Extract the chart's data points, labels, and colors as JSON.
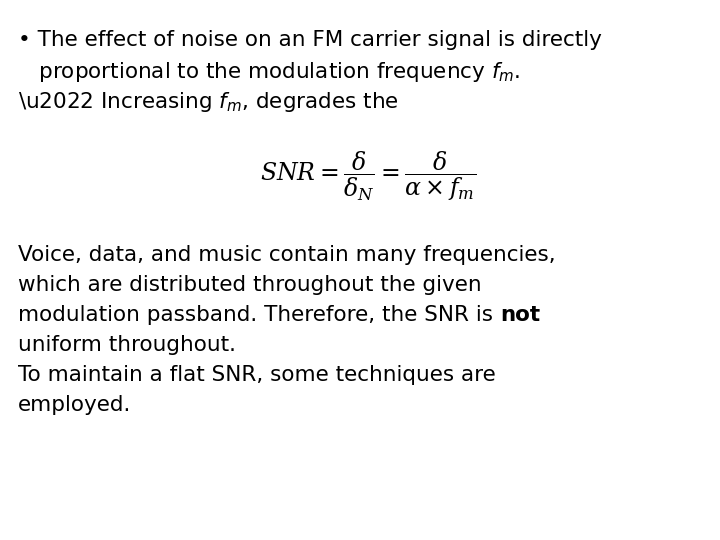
{
  "background_color": "#ffffff",
  "text_color": "#000000",
  "font_size": 15.5,
  "formula_font_size": 17,
  "bullet1_l1": "• The effect of noise on an FM carrier signal is directly",
  "bullet1_l2": "   proportional to the modulation frequency $f_m$.",
  "bullet2": "• Increasing $f_m$, degrades the",
  "formula": "$SNR = \\dfrac{\\delta}{\\delta_N} = \\dfrac{\\delta}{\\alpha \\times f_m}$",
  "para1": "Voice, data, and music contain many frequencies,",
  "para2": "which are distributed throughout the given",
  "para3_pre": "modulation passband. Therefore, the SNR is ",
  "para3_bold": "not",
  "para4": "uniform throughout.",
  "para5": "To maintain a flat SNR, some techniques are",
  "para6": "employed."
}
